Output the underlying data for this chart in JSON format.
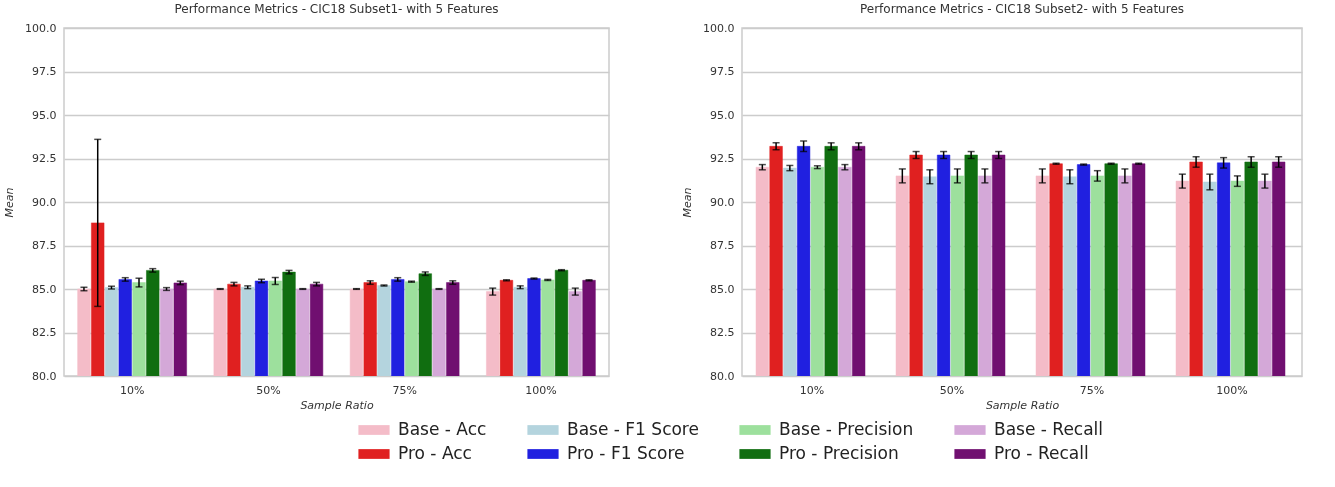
{
  "chart_data": [
    {
      "type": "bar",
      "title": "Performance Metrics - CIC18 Subset1- with 5 Features",
      "xlabel": "Sample Ratio",
      "ylabel": "Mean",
      "categories": [
        "10%",
        "50%",
        "75%",
        "100%"
      ],
      "ylim": [
        80,
        100
      ],
      "yticks": [
        {
          "value": 80,
          "label": "80.0"
        },
        {
          "value": 82.5,
          "label": "82.5"
        },
        {
          "value": 85,
          "label": "85.0"
        },
        {
          "value": 87.5,
          "label": "87.5"
        },
        {
          "value": 90,
          "label": "90.0"
        },
        {
          "value": 92.5,
          "label": "92.5"
        },
        {
          "value": 95,
          "label": "95.0"
        },
        {
          "value": 97.5,
          "label": "97.5"
        },
        {
          "value": 100,
          "label": "100.0"
        }
      ],
      "grid": "y",
      "legend": "bottom",
      "series": [
        {
          "name": "Base - Acc",
          "color": "#f4bcc8",
          "values": [
            85.0,
            85.0,
            85.0,
            84.85
          ],
          "errors": [
            0.1,
            0.02,
            0.02,
            0.2
          ]
        },
        {
          "name": "Pro - Acc",
          "color": "#e02020",
          "values": [
            88.8,
            85.28,
            85.37,
            85.5
          ],
          "errors": [
            [
              84.0,
              93.6
            ],
            0.1,
            0.1,
            0.03
          ]
        },
        {
          "name": "Base - F1 Score",
          "color": "#b4d4de",
          "values": [
            85.08,
            85.1,
            85.2,
            85.1
          ],
          "errors": [
            0.08,
            0.08,
            0.03,
            0.08
          ]
        },
        {
          "name": "Pro - F1 Score",
          "color": "#2020e0",
          "values": [
            85.55,
            85.46,
            85.55,
            85.6
          ],
          "errors": [
            0.1,
            0.1,
            0.1,
            0.03
          ]
        },
        {
          "name": "Base - Precision",
          "color": "#9de09d",
          "values": [
            85.37,
            85.46,
            85.42,
            85.52
          ],
          "errors": [
            0.25,
            0.2,
            0.03,
            0.03
          ]
        },
        {
          "name": "Pro - Precision",
          "color": "#106e10",
          "values": [
            86.07,
            85.97,
            85.88,
            86.08
          ],
          "errors": [
            0.1,
            0.1,
            0.1,
            0.03
          ]
        },
        {
          "name": "Base - Recall",
          "color": "#d4a8d8",
          "values": [
            85.0,
            85.0,
            85.0,
            84.85
          ],
          "errors": [
            0.08,
            0.02,
            0.02,
            0.2
          ]
        },
        {
          "name": "Pro - Recall",
          "color": "#700f70",
          "values": [
            85.35,
            85.28,
            85.37,
            85.5
          ],
          "errors": [
            0.1,
            0.1,
            0.1,
            0.03
          ]
        }
      ]
    },
    {
      "type": "bar",
      "title": "Performance Metrics - CIC18 Subset2- with 5 Features",
      "xlabel": "Sample Ratio",
      "ylabel": "Mean",
      "categories": [
        "10%",
        "50%",
        "75%",
        "100%"
      ],
      "ylim": [
        80,
        100
      ],
      "yticks": [
        {
          "value": 80,
          "label": "80.0"
        },
        {
          "value": 82.5,
          "label": "82.5"
        },
        {
          "value": 85,
          "label": "85.0"
        },
        {
          "value": 87.5,
          "label": "87.5"
        },
        {
          "value": 90,
          "label": "90.0"
        },
        {
          "value": 92.5,
          "label": "92.5"
        },
        {
          "value": 95,
          "label": "95.0"
        },
        {
          "value": 97.5,
          "label": "97.5"
        },
        {
          "value": 100,
          "label": "100.0"
        }
      ],
      "grid": "y",
      "legend": "bottom",
      "series": [
        {
          "name": "Base - Acc",
          "color": "#f4bcc8",
          "values": [
            92.0,
            91.5,
            91.5,
            91.2
          ],
          "errors": [
            0.15,
            0.4,
            0.4,
            0.4
          ]
        },
        {
          "name": "Pro - Acc",
          "color": "#e02020",
          "values": [
            93.2,
            92.7,
            92.2,
            92.3
          ],
          "errors": [
            0.2,
            0.2,
            0.03,
            0.3
          ]
        },
        {
          "name": "Base - F1 Score",
          "color": "#b4d4de",
          "values": [
            91.95,
            91.45,
            91.45,
            91.15
          ],
          "errors": [
            0.15,
            0.4,
            0.4,
            0.45
          ]
        },
        {
          "name": "Pro - F1 Score",
          "color": "#2020e0",
          "values": [
            93.2,
            92.7,
            92.15,
            92.25
          ],
          "errors": [
            0.3,
            0.2,
            0.03,
            0.3
          ]
        },
        {
          "name": "Base - Precision",
          "color": "#9de09d",
          "values": [
            92.0,
            91.5,
            91.5,
            91.2
          ],
          "errors": [
            0.08,
            0.4,
            0.3,
            0.3
          ]
        },
        {
          "name": "Pro - Precision",
          "color": "#106e10",
          "values": [
            93.2,
            92.7,
            92.2,
            92.3
          ],
          "errors": [
            0.2,
            0.2,
            0.03,
            0.3
          ]
        },
        {
          "name": "Base - Recall",
          "color": "#d4a8d8",
          "values": [
            92.0,
            91.5,
            91.5,
            91.2
          ],
          "errors": [
            0.15,
            0.4,
            0.4,
            0.4
          ]
        },
        {
          "name": "Pro - Recall",
          "color": "#700f70",
          "values": [
            93.2,
            92.7,
            92.2,
            92.3
          ],
          "errors": [
            0.2,
            0.2,
            0.03,
            0.3
          ]
        }
      ]
    }
  ]
}
